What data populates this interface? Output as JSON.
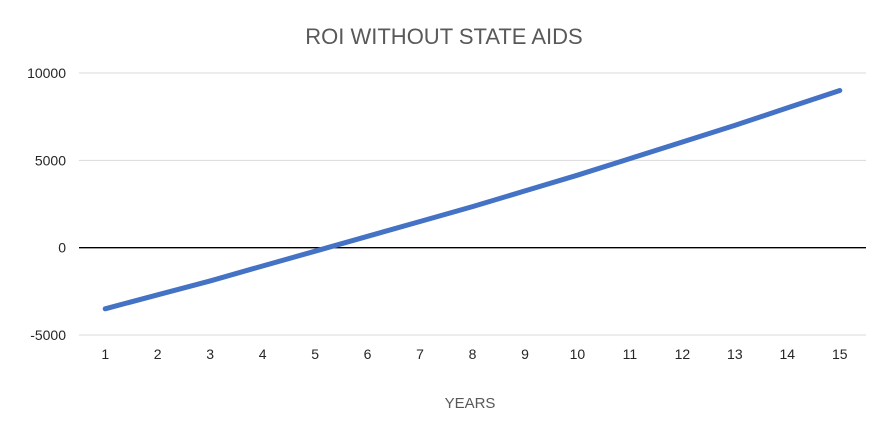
{
  "chart_data": {
    "type": "line",
    "title": "ROI WITHOUT STATE AIDS",
    "xlabel": "YEARS",
    "ylabel": "",
    "categories": [
      "1",
      "2",
      "3",
      "4",
      "5",
      "6",
      "7",
      "8",
      "9",
      "10",
      "11",
      "12",
      "13",
      "14",
      "15"
    ],
    "series": [
      {
        "name": "ROI",
        "values": [
          -3500,
          -2700,
          -1900,
          -1050,
          -200,
          650,
          1500,
          2350,
          3250,
          4150,
          5100,
          6050,
          7000,
          8000,
          9000
        ]
      }
    ],
    "ylim": [
      -5000,
      10000
    ],
    "yticks": [
      -5000,
      0,
      5000,
      10000
    ],
    "ytick_labels": [
      "-5000",
      "0",
      "5000",
      "10000"
    ],
    "grid": true,
    "legend": "none",
    "colors": {
      "line": "#4472c4",
      "grid": "#d9d9d9",
      "zero_line": "#000000",
      "title": "#595959",
      "tick": "#262626"
    }
  }
}
